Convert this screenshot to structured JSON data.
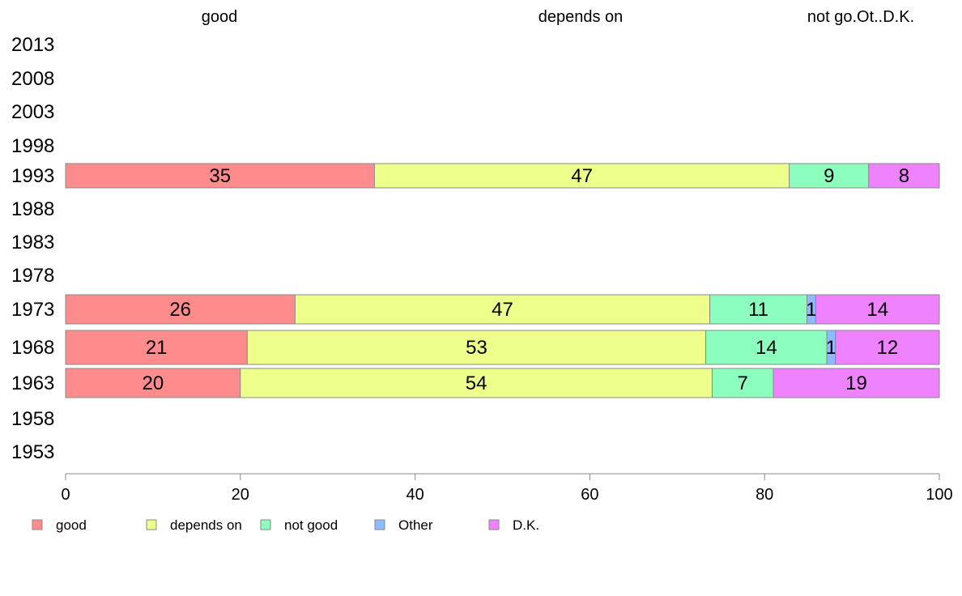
{
  "chart_data": {
    "type": "bar",
    "orientation": "horizontal",
    "stacked": true,
    "categories": [
      "2013",
      "2008",
      "2003",
      "1998",
      "1993",
      "1988",
      "1983",
      "1978",
      "1973",
      "1968",
      "1963",
      "1958",
      "1953"
    ],
    "top_labels": [
      "good",
      "depends on",
      "not go.Ot..D.K."
    ],
    "series": [
      {
        "name": "good",
        "color": "#ff8c8c",
        "values": [
          null,
          null,
          null,
          null,
          35,
          null,
          null,
          null,
          26,
          21,
          20,
          null,
          null
        ]
      },
      {
        "name": "depends on",
        "color": "#eeff8c",
        "values": [
          null,
          null,
          null,
          null,
          47,
          null,
          null,
          null,
          47,
          53,
          54,
          null,
          null
        ]
      },
      {
        "name": "not good",
        "color": "#8cffbe",
        "values": [
          null,
          null,
          null,
          null,
          9,
          null,
          null,
          null,
          11,
          14,
          7,
          null,
          null
        ]
      },
      {
        "name": "Other",
        "color": "#8cbcff",
        "values": [
          null,
          null,
          null,
          null,
          null,
          null,
          null,
          null,
          1,
          1,
          null,
          null,
          null
        ]
      },
      {
        "name": "D.K.",
        "color": "#ee82ff",
        "values": [
          null,
          null,
          null,
          null,
          8,
          null,
          null,
          null,
          14,
          12,
          19,
          null,
          null
        ]
      }
    ],
    "xlim": [
      0,
      100
    ],
    "xticks": [
      0,
      20,
      40,
      60,
      80,
      100
    ],
    "grid": false,
    "legend_position": "bottom"
  }
}
